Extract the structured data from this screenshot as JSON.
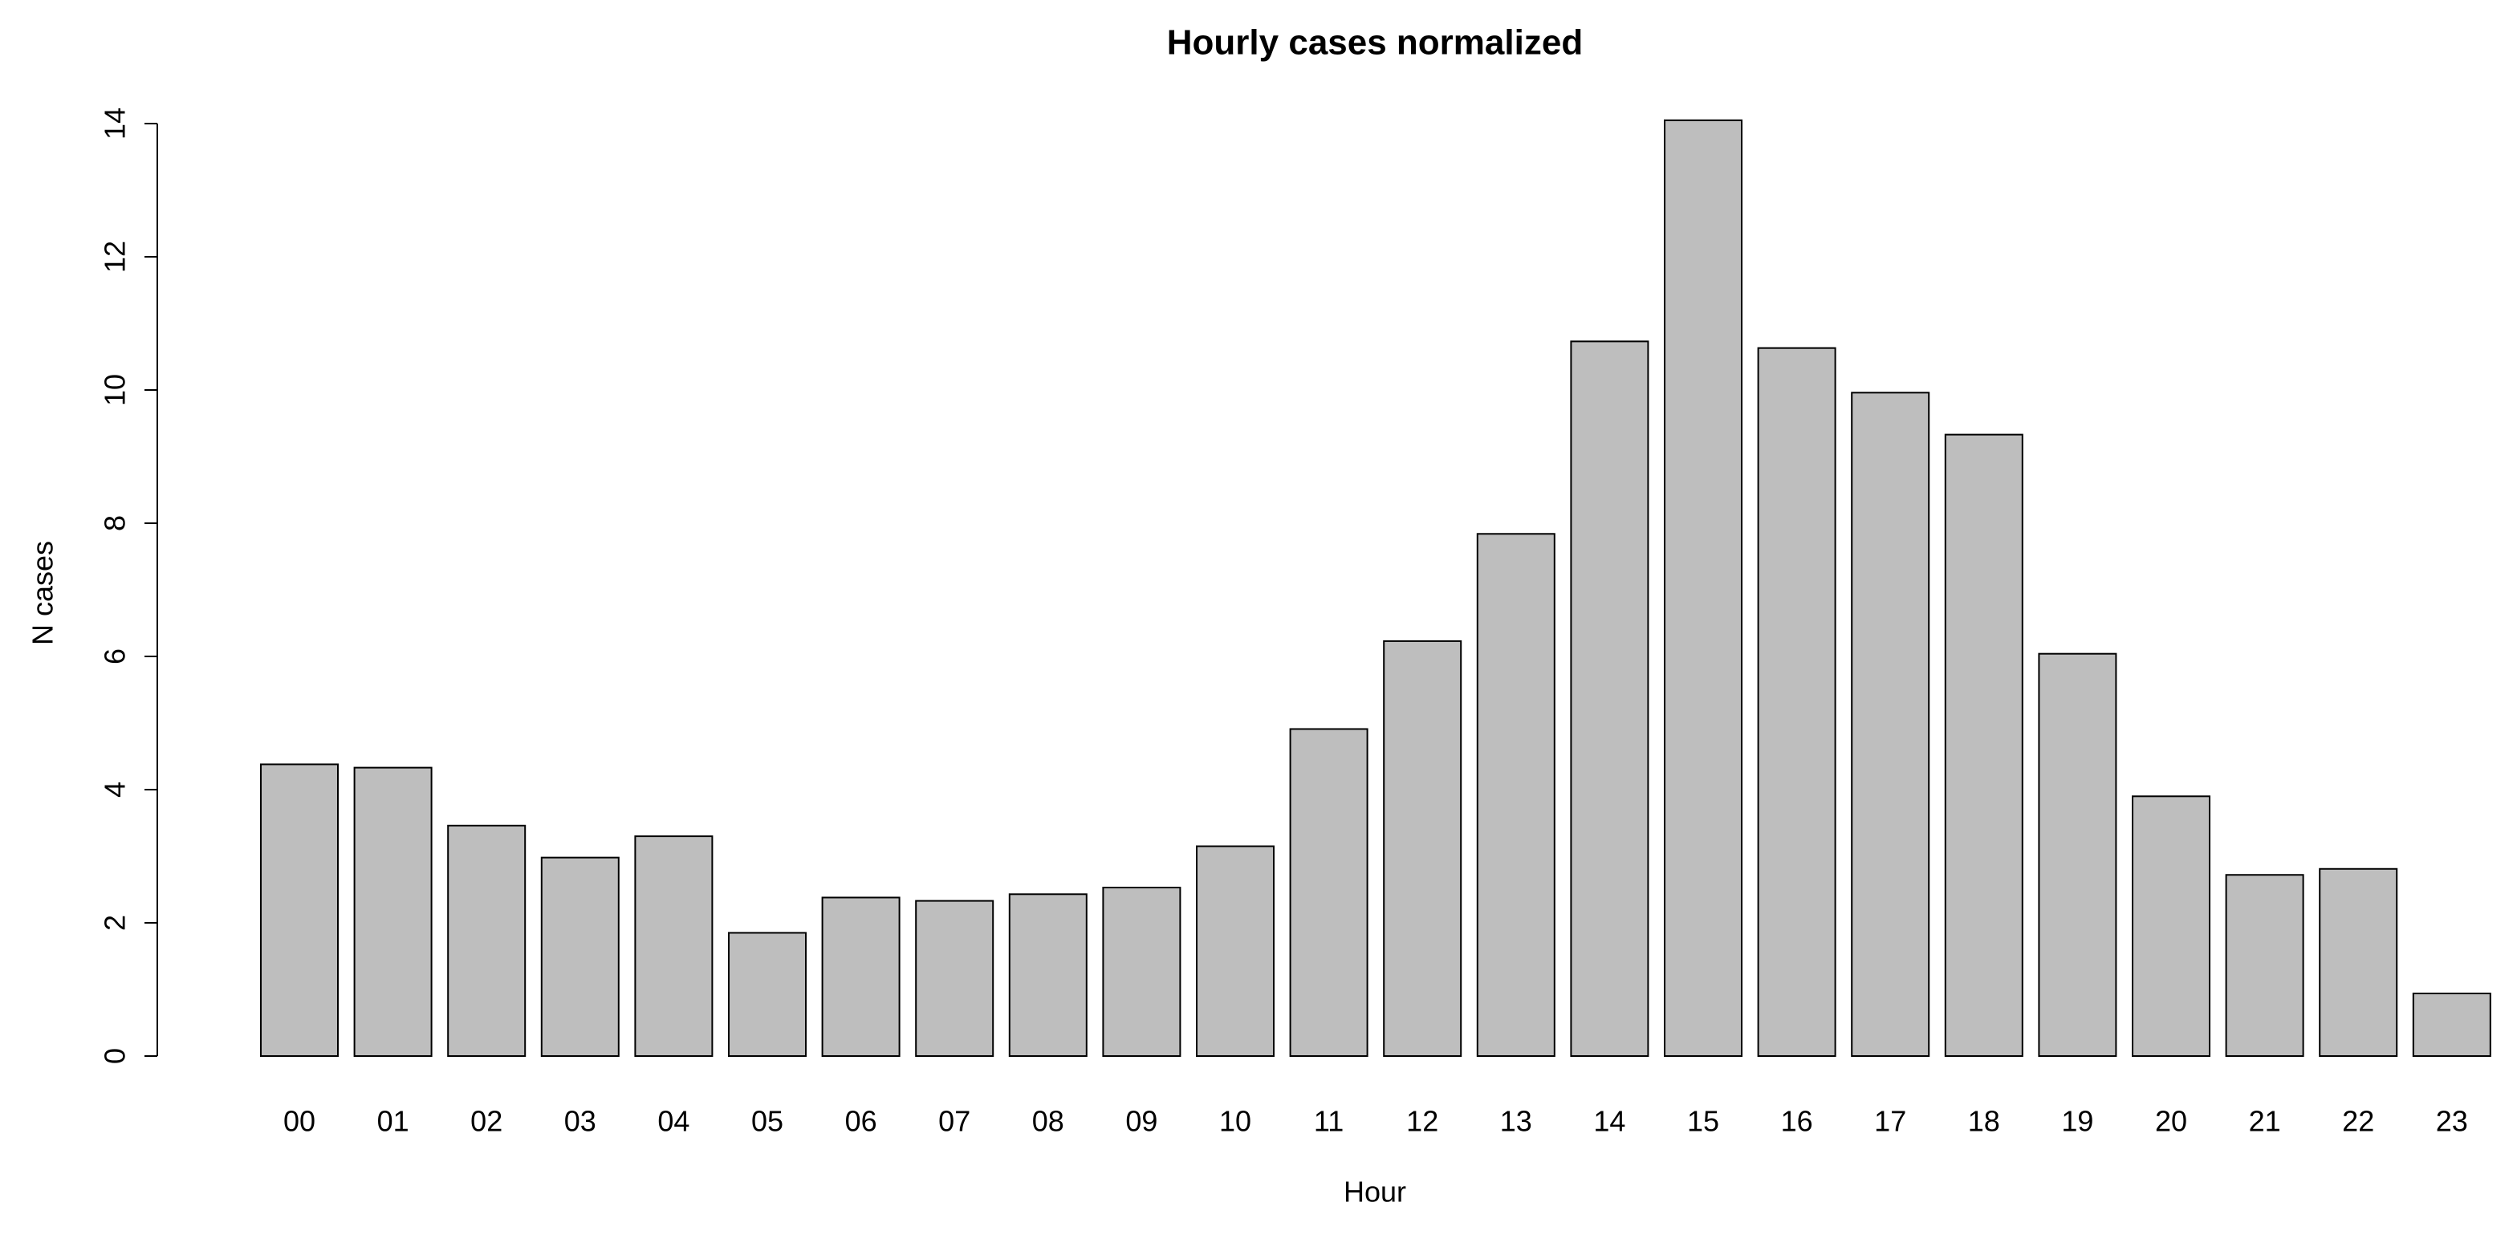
{
  "chart_data": {
    "type": "bar",
    "title": "Hourly cases normalized",
    "x_label": "Hour",
    "y_label": "N cases",
    "categories": [
      "00",
      "01",
      "02",
      "03",
      "04",
      "05",
      "06",
      "07",
      "08",
      "09",
      "10",
      "11",
      "12",
      "13",
      "14",
      "15",
      "16",
      "17",
      "18",
      "19",
      "20",
      "21",
      "22",
      "23"
    ],
    "values": [
      4.38,
      4.33,
      3.46,
      2.98,
      3.3,
      1.85,
      2.38,
      2.33,
      2.43,
      2.53,
      3.15,
      4.91,
      6.23,
      7.84,
      10.73,
      14.05,
      10.63,
      9.96,
      9.33,
      6.04,
      3.9,
      2.72,
      2.81,
      0.94
    ],
    "color": "#bebebe",
    "ylim": [
      0,
      14
    ],
    "yticks": [
      0,
      2,
      4,
      6,
      8,
      10,
      12,
      14
    ]
  }
}
